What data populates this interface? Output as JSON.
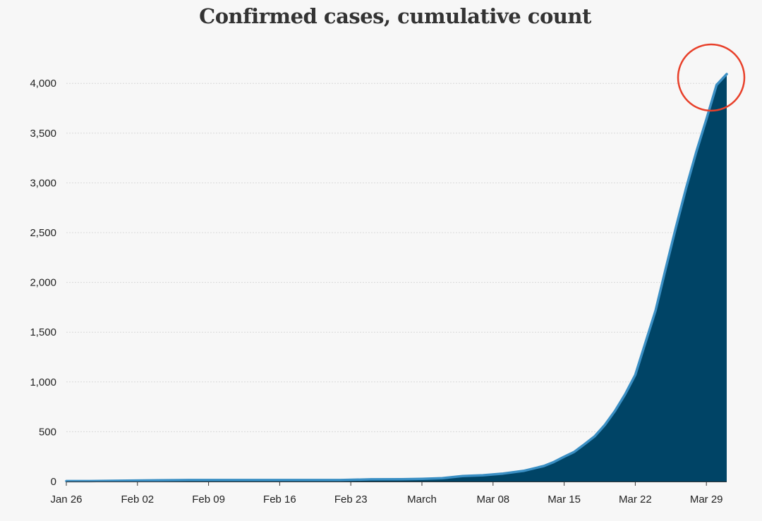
{
  "chart_data": {
    "type": "area",
    "title": "Confirmed cases, cumulative count",
    "xlabel": "",
    "ylabel": "",
    "ylim": [
      0,
      4200
    ],
    "y_ticks": [
      {
        "value": 0,
        "label": "0"
      },
      {
        "value": 500,
        "label": "500"
      },
      {
        "value": 1000,
        "label": "1,000"
      },
      {
        "value": 1500,
        "label": "1,500"
      },
      {
        "value": 2000,
        "label": "2,000"
      },
      {
        "value": 2500,
        "label": "2,500"
      },
      {
        "value": 3000,
        "label": "3,000"
      },
      {
        "value": 3500,
        "label": "3,500"
      },
      {
        "value": 4000,
        "label": "4,000"
      }
    ],
    "x_ticks": [
      {
        "date": "2020-01-26",
        "label": "Jan 26"
      },
      {
        "date": "2020-02-02",
        "label": "Feb 02"
      },
      {
        "date": "2020-02-09",
        "label": "Feb 09"
      },
      {
        "date": "2020-02-16",
        "label": "Feb 16"
      },
      {
        "date": "2020-02-23",
        "label": "Feb 23"
      },
      {
        "date": "2020-03-01",
        "label": "March"
      },
      {
        "date": "2020-03-08",
        "label": "Mar 08"
      },
      {
        "date": "2020-03-15",
        "label": "Mar 15"
      },
      {
        "date": "2020-03-22",
        "label": "Mar 22"
      },
      {
        "date": "2020-03-29",
        "label": "Mar 29"
      }
    ],
    "grid": true,
    "legend": "none",
    "annotation": "red circle around latest value",
    "colors": {
      "fill": "#004466",
      "line": "#3a8fc4",
      "annotation": "#e8402a",
      "grid": "#d9d9d9"
    },
    "series": [
      {
        "x": [
          "2020-01-26",
          "2020-01-29",
          "2020-02-01",
          "2020-02-04",
          "2020-02-07",
          "2020-02-10",
          "2020-02-13",
          "2020-02-16",
          "2020-02-19",
          "2020-02-22",
          "2020-02-25",
          "2020-02-28",
          "2020-03-01",
          "2020-03-03",
          "2020-03-05",
          "2020-03-07",
          "2020-03-09",
          "2020-03-11",
          "2020-03-13",
          "2020-03-14",
          "2020-03-15",
          "2020-03-16",
          "2020-03-17",
          "2020-03-18",
          "2020-03-19",
          "2020-03-20",
          "2020-03-21",
          "2020-03-22",
          "2020-03-23",
          "2020-03-24",
          "2020-03-25",
          "2020-03-26",
          "2020-03-27",
          "2020-03-28",
          "2020-03-29",
          "2020-03-30",
          "2020-03-31"
        ],
        "y": [
          4,
          5,
          9,
          12,
          15,
          15,
          15,
          15,
          15,
          15,
          22,
          23,
          26,
          33,
          55,
          63,
          80,
          107,
          156,
          197,
          249,
          298,
          375,
          454,
          568,
          709,
          876,
          1071,
          1395,
          1719,
          2142,
          2554,
          2947,
          3310,
          3640,
          3984,
          4093
        ]
      }
    ]
  }
}
